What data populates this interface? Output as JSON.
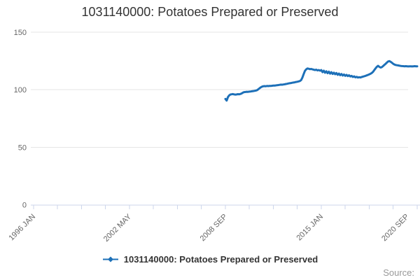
{
  "title": "1031140000: Potatoes Prepared or Preserved",
  "legend": {
    "label": "1031140000: Potatoes Prepared or Preserved"
  },
  "credits": {
    "text": "Source:"
  },
  "colors": {
    "series": "#1d70b8",
    "axis_line": "#ccd6eb",
    "gridline": "#e6e6e6",
    "axis_label": "#666666",
    "title_text": "#333333",
    "legend_text": "#333333",
    "credits_text": "#999999"
  },
  "chart_data": {
    "type": "line",
    "title": "1031140000: Potatoes Prepared or Preserved",
    "xlabel": "",
    "ylabel": "",
    "grid": true,
    "legend_position": "bottom",
    "x_axis": {
      "origin_month": "1996-01",
      "tick_step_months": 19,
      "months_total": 304,
      "labeled_ticks": [
        {
          "label": "1996 JAN",
          "month": 0
        },
        {
          "label": "2002 MAY",
          "month": 76
        },
        {
          "label": "2008 SEP",
          "month": 152
        },
        {
          "label": "2015 JAN",
          "month": 228
        },
        {
          "label": "2020 SEP",
          "month": 296
        }
      ]
    },
    "y_axis": {
      "min": 0,
      "max": 150,
      "ticks": [
        0,
        50,
        100,
        150
      ]
    },
    "series": [
      {
        "name": "1031140000: Potatoes Prepared or Preserved",
        "start": "2008-09",
        "start_month_offset": 152,
        "frequency": "monthly",
        "values": [
          92.0,
          90.5,
          93.5,
          95.0,
          95.8,
          96.0,
          96.2,
          95.9,
          95.7,
          95.9,
          96.1,
          96.0,
          96.3,
          96.8,
          97.5,
          97.9,
          98.0,
          98.2,
          98.1,
          98.3,
          98.4,
          98.6,
          98.8,
          99.0,
          99.2,
          99.5,
          100.3,
          101.2,
          102.0,
          102.6,
          103.0,
          103.1,
          103.0,
          103.2,
          103.1,
          103.3,
          103.2,
          103.4,
          103.5,
          103.6,
          103.7,
          103.9,
          104.0,
          104.2,
          104.4,
          104.3,
          104.5,
          104.7,
          104.9,
          105.1,
          105.4,
          105.6,
          105.8,
          106.0,
          106.2,
          106.4,
          106.7,
          106.9,
          107.2,
          107.5,
          108.3,
          110.5,
          113.5,
          116.3,
          117.6,
          118.4,
          118.2,
          117.8,
          118.0,
          117.6,
          117.3,
          117.0,
          117.4,
          116.7,
          117.1,
          116.5,
          117.0,
          115.2,
          116.5,
          114.7,
          116.0,
          114.3,
          115.6,
          113.9,
          115.2,
          113.6,
          114.8,
          113.4,
          114.4,
          112.9,
          114.0,
          112.6,
          113.6,
          112.3,
          113.2,
          112.0,
          112.9,
          111.8,
          112.5,
          111.5,
          112.0,
          111.0,
          111.6,
          110.7,
          111.2,
          110.5,
          110.8,
          110.6,
          111.0,
          111.3,
          111.7,
          112.0,
          112.4,
          112.8,
          113.3,
          113.8,
          114.5,
          115.5,
          117.0,
          118.5,
          119.8,
          120.7,
          119.8,
          119.2,
          119.6,
          120.5,
          121.5,
          122.5,
          123.5,
          124.5,
          124.8,
          124.2,
          123.4,
          122.5,
          121.8,
          121.4,
          121.2,
          121.0,
          120.8,
          120.6,
          120.5,
          120.4,
          120.3,
          120.4,
          120.3,
          120.2,
          120.3,
          120.3,
          120.2,
          120.3,
          120.4,
          120.3,
          120.3
        ]
      }
    ]
  }
}
